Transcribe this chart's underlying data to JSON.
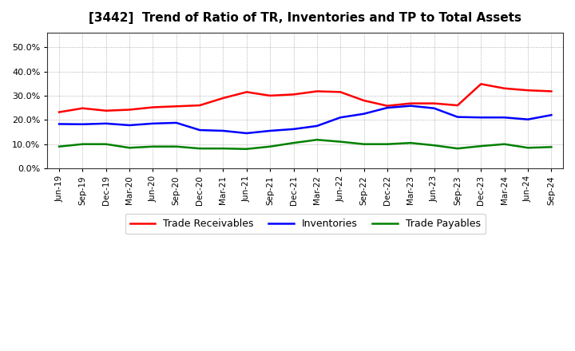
{
  "title": "[3442]  Trend of Ratio of TR, Inventories and TP to Total Assets",
  "x_labels": [
    "Jun-19",
    "Sep-19",
    "Dec-19",
    "Mar-20",
    "Jun-20",
    "Sep-20",
    "Dec-20",
    "Mar-21",
    "Jun-21",
    "Sep-21",
    "Dec-21",
    "Mar-22",
    "Jun-22",
    "Sep-22",
    "Dec-22",
    "Mar-23",
    "Jun-23",
    "Sep-23",
    "Dec-23",
    "Mar-24",
    "Jun-24",
    "Sep-24"
  ],
  "trade_receivables": [
    0.232,
    0.248,
    0.238,
    0.242,
    0.252,
    0.256,
    0.26,
    0.29,
    0.315,
    0.3,
    0.305,
    0.318,
    0.315,
    0.28,
    0.258,
    0.268,
    0.268,
    0.26,
    0.348,
    0.33,
    0.322,
    0.318
  ],
  "inventories": [
    0.183,
    0.182,
    0.185,
    0.178,
    0.185,
    0.188,
    0.158,
    0.155,
    0.145,
    0.155,
    0.162,
    0.175,
    0.21,
    0.225,
    0.25,
    0.258,
    0.248,
    0.212,
    0.21,
    0.21,
    0.202,
    0.22
  ],
  "trade_payables": [
    0.09,
    0.1,
    0.1,
    0.085,
    0.09,
    0.09,
    0.082,
    0.082,
    0.08,
    0.09,
    0.105,
    0.118,
    0.11,
    0.1,
    0.1,
    0.105,
    0.095,
    0.082,
    0.092,
    0.1,
    0.085,
    0.088
  ],
  "ylim": [
    0.0,
    0.56
  ],
  "yticks": [
    0.0,
    0.1,
    0.2,
    0.3,
    0.4,
    0.5
  ],
  "colors": {
    "trade_receivables": "#ff0000",
    "inventories": "#0000ff",
    "trade_payables": "#008000"
  },
  "legend_labels": [
    "Trade Receivables",
    "Inventories",
    "Trade Payables"
  ],
  "background_color": "#ffffff",
  "plot_bg_color": "#ffffff",
  "line_width": 1.8
}
